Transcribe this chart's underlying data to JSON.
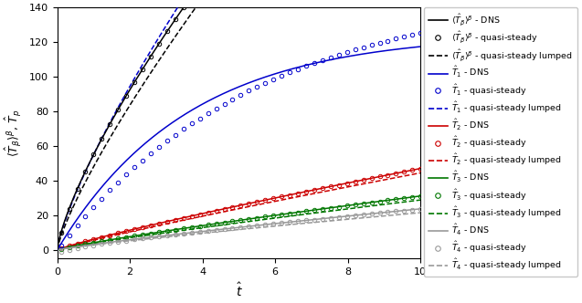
{
  "xlim": [
    0,
    10
  ],
  "ylim": [
    -5,
    140
  ],
  "xticks": [
    0,
    2,
    4,
    6,
    8,
    10
  ],
  "yticks": [
    0,
    20,
    40,
    60,
    80,
    100,
    120,
    140
  ],
  "xlabel": "$\\hat{t}$",
  "ylabel": "$\\langle\\hat{T}_{\\beta}\\rangle^{\\beta},\\, \\hat{T}_p$",
  "colors": {
    "black": "#000000",
    "blue": "#0000cc",
    "red": "#cc0000",
    "green": "#007700",
    "gray": "#999999"
  },
  "curves": {
    "T_beta_A": 55.0,
    "T_beta_pow": 0.75,
    "T_beta_lump_A": 48.0,
    "T_beta_lump_pow": 0.8,
    "T1_dns_A": 125.0,
    "T1_dns_k": 0.28,
    "T1_qs_A": 150.0,
    "T1_qs_k": 0.18,
    "T1_lump_A": 55.0,
    "T1_lump_pow": 0.78,
    "T2_dns_A": 6.2,
    "T2_dns_pow": 0.88,
    "T2_lump_A": 5.6,
    "T2_lump_pow": 0.9,
    "T3_dns_A": 4.2,
    "T3_dns_pow": 0.87,
    "T3_lump_A": 3.8,
    "T3_lump_pow": 0.88,
    "T4_dns_A": 3.2,
    "T4_dns_pow": 0.87,
    "T4_qs_neg_A": 2.0,
    "T4_qs_neg_k": 1.2,
    "T4_lump_A": 2.9,
    "T4_lump_pow": 0.87
  },
  "legend_items": [
    {
      "label": "$\\langle\\hat{T}_{\\beta}\\rangle^{\\beta}$ - DNS",
      "color": "black",
      "ls": "-",
      "marker": "none"
    },
    {
      "label": "$\\langle\\hat{T}_{\\beta}\\rangle^{\\beta}$ - quasi-steady",
      "color": "black",
      "ls": "none",
      "marker": "o"
    },
    {
      "label": "$\\langle\\hat{T}_{\\beta}\\rangle^{\\beta}$ - quasi-steady lumped",
      "color": "black",
      "ls": "--",
      "marker": "none"
    },
    {
      "label": "$\\hat{T}_1$ - DNS",
      "color": "blue",
      "ls": "-",
      "marker": "none"
    },
    {
      "label": "$\\hat{T}_1$ - quasi-steady",
      "color": "blue",
      "ls": "none",
      "marker": "o"
    },
    {
      "label": "$\\hat{T}_1$ - quasi-steady lumped",
      "color": "blue",
      "ls": "--",
      "marker": "none"
    },
    {
      "label": "$\\hat{T}_2$ - DNS",
      "color": "red",
      "ls": "-",
      "marker": "none"
    },
    {
      "label": "$\\hat{T}_2$ - quasi-steady",
      "color": "red",
      "ls": "none",
      "marker": "o"
    },
    {
      "label": "$\\hat{T}_2$ - quasi-steady lumped",
      "color": "red",
      "ls": "--",
      "marker": "none"
    },
    {
      "label": "$\\hat{T}_3$ - DNS",
      "color": "green",
      "ls": "-",
      "marker": "none"
    },
    {
      "label": "$\\hat{T}_3$ - quasi-steady",
      "color": "green",
      "ls": "none",
      "marker": "o"
    },
    {
      "label": "$\\hat{T}_3$ - quasi-steady lumped",
      "color": "green",
      "ls": "--",
      "marker": "none"
    },
    {
      "label": "$\\hat{T}_4$ - DNS",
      "color": "gray",
      "ls": "-",
      "marker": "none"
    },
    {
      "label": "$\\hat{T}_4$ - quasi-steady",
      "color": "gray",
      "ls": "none",
      "marker": "o"
    },
    {
      "label": "$\\hat{T}_4$ - quasi-steady lumped",
      "color": "gray",
      "ls": "--",
      "marker": "none"
    }
  ],
  "lw": 1.1,
  "ms": 3.2,
  "mew": 0.7,
  "n_circ": 45,
  "t_circ_start": 0.1,
  "figsize": [
    6.37,
    3.32
  ],
  "dpi": 100
}
